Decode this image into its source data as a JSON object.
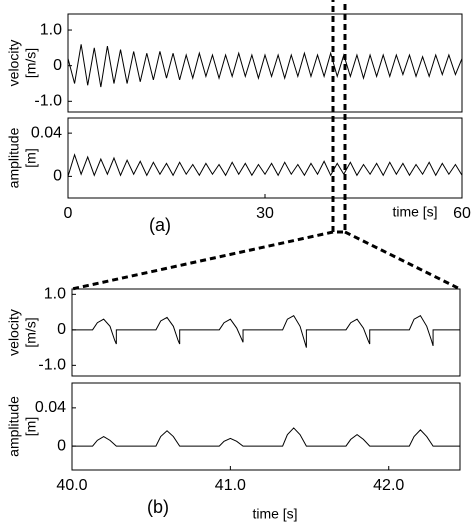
{
  "chart_data": [
    {
      "type": "line",
      "ylabel_lines": [
        "velocity",
        "[m/s]"
      ],
      "color": "#000000",
      "xlim": [
        0,
        60
      ],
      "ylim": [
        -1.3,
        1.45
      ],
      "yticks": [
        {
          "value": 1,
          "label": "1.0"
        },
        0,
        {
          "value": -1,
          "label": "-1.0"
        }
      ],
      "x": [
        0,
        1,
        2,
        3,
        4,
        5,
        6,
        7,
        8,
        9,
        10,
        11,
        12,
        13,
        14,
        15,
        16,
        17,
        18,
        19,
        20,
        21,
        22,
        23,
        24,
        25,
        26,
        27,
        28,
        29,
        30,
        31,
        32,
        33,
        34,
        35,
        36,
        37,
        38,
        39,
        40,
        41,
        42,
        43,
        44,
        45,
        46,
        47,
        48,
        49,
        50,
        51,
        52,
        53,
        54,
        55,
        56,
        57,
        58,
        59,
        60
      ],
      "values": [
        0.2,
        -0.5,
        0.6,
        -0.55,
        0.5,
        -0.6,
        0.55,
        -0.5,
        0.45,
        -0.5,
        0.4,
        -0.45,
        0.35,
        -0.4,
        0.4,
        -0.35,
        0.35,
        -0.4,
        0.3,
        -0.35,
        0.35,
        -0.3,
        0.3,
        -0.35,
        0.3,
        -0.3,
        0.35,
        -0.3,
        0.3,
        -0.35,
        0.3,
        -0.3,
        0.3,
        -0.35,
        0.3,
        -0.3,
        0.35,
        -0.3,
        0.3,
        -0.3,
        0.35,
        -0.3,
        0.3,
        -0.3,
        0.3,
        -0.35,
        0.3,
        -0.3,
        0.3,
        -0.3,
        0.3,
        -0.25,
        0.3,
        -0.3,
        0.25,
        -0.3,
        0.3,
        -0.25,
        0.3,
        -0.25,
        0.2
      ]
    },
    {
      "type": "line",
      "ylabel_lines": [
        "amplitude",
        "[m]"
      ],
      "color": "#000000",
      "xlim": [
        0,
        60
      ],
      "ylim": [
        -0.02,
        0.054
      ],
      "yticks": [
        0.04,
        0
      ],
      "xticks": [
        0,
        30,
        60
      ],
      "xlabel": "time [s]",
      "panel_label": "(a)",
      "x": [
        0,
        1,
        2,
        3,
        4,
        5,
        6,
        7,
        8,
        9,
        10,
        11,
        12,
        13,
        14,
        15,
        16,
        17,
        18,
        19,
        20,
        21,
        22,
        23,
        24,
        25,
        26,
        27,
        28,
        29,
        30,
        31,
        32,
        33,
        34,
        35,
        36,
        37,
        38,
        39,
        40,
        41,
        42,
        43,
        44,
        45,
        46,
        47,
        48,
        49,
        50,
        51,
        52,
        53,
        54,
        55,
        56,
        57,
        58,
        59,
        60
      ],
      "values": [
        0,
        0.02,
        0.002,
        0.018,
        0.001,
        0.016,
        0.002,
        0.017,
        0.001,
        0.015,
        0.002,
        0.014,
        0.001,
        0.013,
        0.002,
        0.012,
        0.001,
        0.013,
        0.002,
        0.011,
        0.001,
        0.012,
        0.002,
        0.011,
        0.001,
        0.013,
        0.002,
        0.012,
        0.001,
        0.011,
        0.002,
        0.012,
        0.001,
        0.013,
        0.002,
        0.011,
        0.001,
        0.012,
        0.002,
        0.014,
        0.001,
        0.012,
        0.002,
        0.013,
        0.001,
        0.011,
        0.002,
        0.012,
        0.001,
        0.013,
        0.002,
        0.012,
        0.001,
        0.011,
        0.002,
        0.013,
        0.001,
        0.012,
        0.002,
        0.011,
        0.001
      ]
    },
    {
      "type": "line",
      "ylabel_lines": [
        "velocity",
        "[m/s]"
      ],
      "color": "#000000",
      "xlim": [
        40,
        42.45
      ],
      "ylim": [
        -1.3,
        1.15
      ],
      "yticks": [
        {
          "value": 1,
          "label": "1.0"
        },
        0,
        {
          "value": -1,
          "label": "-1.0"
        }
      ],
      "x": [
        40.0,
        40.13,
        40.16,
        40.2,
        40.24,
        40.27,
        40.28,
        40.28,
        40.53,
        40.56,
        40.6,
        40.64,
        40.67,
        40.68,
        40.68,
        40.93,
        40.96,
        41.0,
        41.04,
        41.07,
        41.08,
        41.08,
        41.33,
        41.36,
        41.4,
        41.44,
        41.47,
        41.48,
        41.48,
        41.73,
        41.76,
        41.8,
        41.84,
        41.87,
        41.88,
        41.88,
        42.13,
        42.16,
        42.2,
        42.24,
        42.27,
        42.28,
        42.28,
        42.45
      ],
      "values": [
        0,
        0,
        0.2,
        0.3,
        0.1,
        -0.3,
        -0.4,
        0,
        0,
        0.25,
        0.35,
        0.1,
        -0.3,
        -0.4,
        0,
        0,
        0.2,
        0.3,
        0.05,
        -0.25,
        -0.35,
        0,
        0,
        0.3,
        0.4,
        0.1,
        -0.35,
        -0.5,
        0,
        0,
        0.2,
        0.3,
        0.05,
        -0.3,
        -0.4,
        0,
        0,
        0.3,
        0.4,
        0.1,
        -0.3,
        -0.45,
        0,
        0
      ]
    },
    {
      "type": "line",
      "ylabel_lines": [
        "amplitude",
        "[m]"
      ],
      "color": "#000000",
      "xlim": [
        40,
        42.45
      ],
      "ylim": [
        -0.025,
        0.066
      ],
      "yticks": [
        0.04,
        0
      ],
      "xticks": [
        {
          "value": 40,
          "label": "40.0"
        },
        {
          "value": 41,
          "label": "41.0"
        },
        {
          "value": 42,
          "label": "42.0"
        }
      ],
      "xlabel": "time [s]",
      "panel_label": "(b)",
      "x": [
        40.0,
        40.13,
        40.16,
        40.2,
        40.24,
        40.28,
        40.53,
        40.56,
        40.6,
        40.64,
        40.68,
        40.93,
        40.96,
        41.0,
        41.04,
        41.08,
        41.33,
        41.36,
        41.4,
        41.44,
        41.48,
        41.73,
        41.76,
        41.8,
        41.84,
        41.88,
        42.13,
        42.16,
        42.2,
        42.24,
        42.28,
        42.45
      ],
      "values": [
        0,
        0,
        0.006,
        0.01,
        0.006,
        0,
        0,
        0.01,
        0.016,
        0.01,
        0,
        0,
        0.005,
        0.008,
        0.005,
        0,
        0,
        0.012,
        0.019,
        0.012,
        0,
        0,
        0.007,
        0.012,
        0.007,
        0,
        0,
        0.01,
        0.017,
        0.01,
        0,
        0
      ]
    }
  ]
}
